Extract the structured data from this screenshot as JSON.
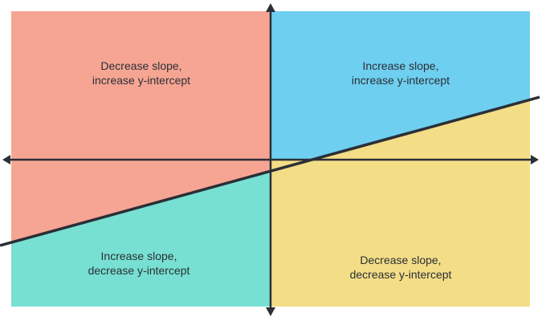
{
  "colors": {
    "top_left": "#f6a593",
    "top_right": "#6ecff0",
    "bottom_left": "#77e0d2",
    "bottom_right": "#f3dd86",
    "axis": "#2b2f36",
    "line": "#2b2f36",
    "background": "#ffffff"
  },
  "regions": {
    "top_left": {
      "line1": "Decrease slope,",
      "line2": "increase y-intercept"
    },
    "top_right": {
      "line1": "Increase slope,",
      "line2": "increase y-intercept"
    },
    "bottom_left": {
      "line1": "Increase slope,",
      "line2": "decrease y-intercept"
    },
    "bottom_right": {
      "line1": "Decrease slope,",
      "line2": "decrease y-intercept"
    }
  }
}
